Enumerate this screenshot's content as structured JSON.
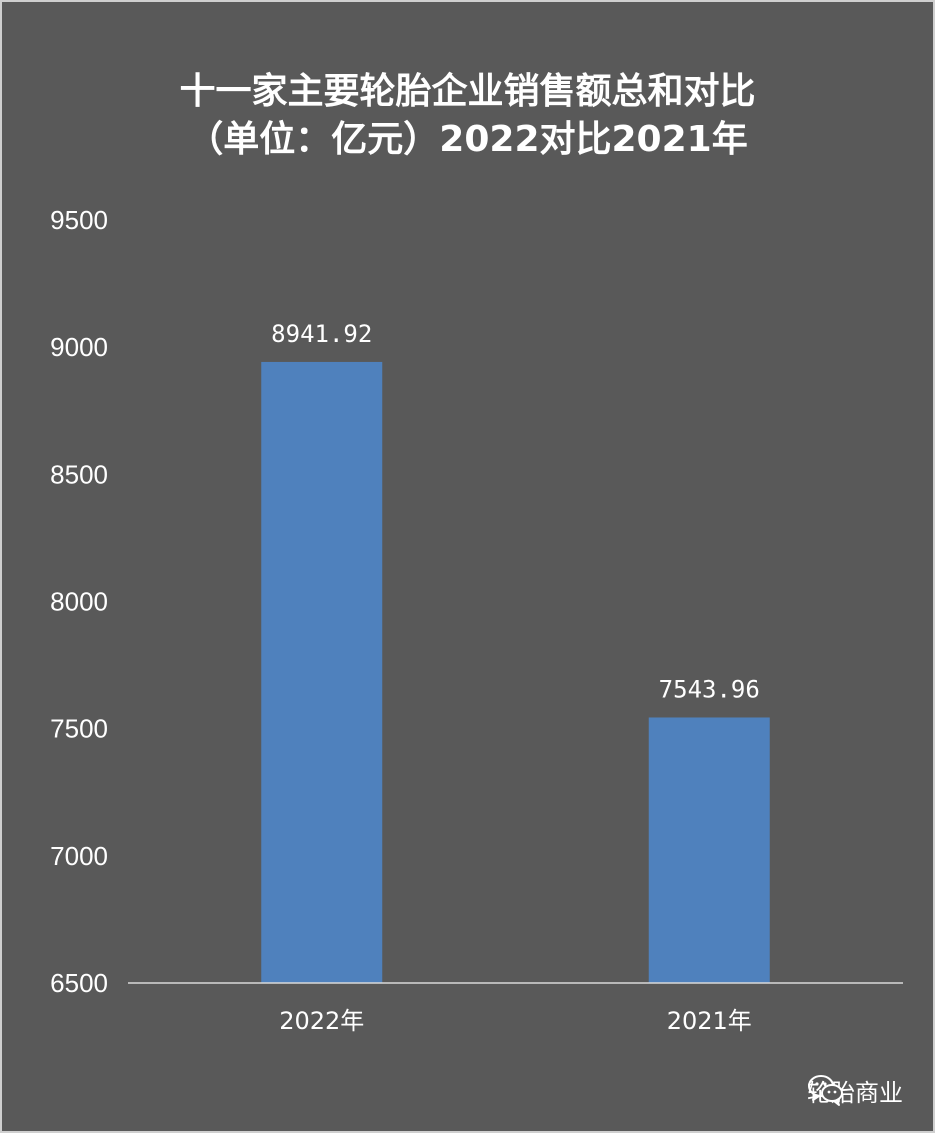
{
  "chart_data": {
    "type": "bar",
    "title": "十一家主要轮胎企业销售额总和对比",
    "subtitle": "（单位：亿元）2022对比2021年",
    "categories": [
      "2022年",
      "2021年"
    ],
    "values": [
      8941.92,
      7543.96
    ],
    "data_labels": [
      "8941.92",
      "7543.96"
    ],
    "ylim": [
      6500,
      9500
    ],
    "yticks": [
      6500,
      7000,
      7500,
      8000,
      8500,
      9000,
      9500
    ],
    "grid": false,
    "bar_color": "#4f81bd",
    "background_color": "#595959",
    "text_color": "#ffffff"
  },
  "watermark": {
    "text": "轮胎商业",
    "icon": "wechat-icon"
  }
}
